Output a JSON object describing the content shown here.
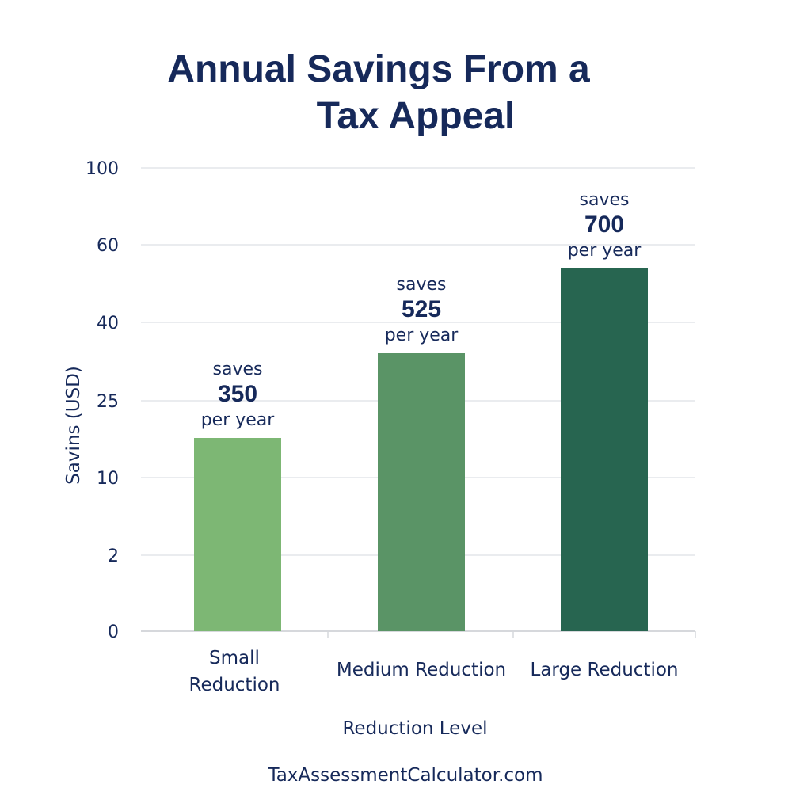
{
  "chart_data": {
    "type": "bar",
    "title_lines": [
      "Annual Savings From a",
      "Tax Appeal"
    ],
    "xlabel": "Reduction Level",
    "ylabel": "Savins (USD)",
    "y_tick_labels": [
      "0",
      "2",
      "10",
      "25",
      "40",
      "60",
      "100"
    ],
    "categories": [
      [
        "Small",
        "Reduction"
      ],
      [
        "Medium Reduction"
      ],
      [
        "Large Reduction"
      ]
    ],
    "values": [
      350,
      525,
      700
    ],
    "value_labels": [
      {
        "prefix": "saves",
        "value": "350",
        "suffix": "per year"
      },
      {
        "prefix": "saves",
        "value": "525",
        "suffix": "per year"
      },
      {
        "prefix": "saves",
        "value": "700",
        "suffix": "per year"
      }
    ],
    "bar_colors": [
      "#7db774",
      "#5a9466",
      "#276550"
    ],
    "grid": true,
    "legend": "none"
  },
  "colors": {
    "text": "#16295a",
    "grid": "#e4e6ea",
    "axis": "#d6d8dc"
  },
  "footer": "TaxAssessmentCalculator.com"
}
